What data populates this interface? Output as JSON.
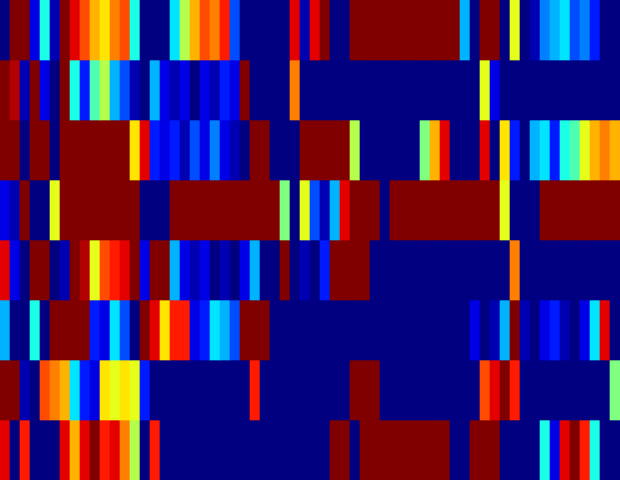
{
  "chart_data": {
    "type": "heatmap",
    "color": "jet",
    "tick_labels": false,
    "grid": false,
    "cells": [
      [
        0,
        1,
        1,
        0.1,
        0.4,
        0.05,
        1,
        0.9,
        0.8,
        0.7,
        0.65,
        0.75,
        0.8,
        0.4,
        0,
        0,
        0,
        0.35,
        0.55,
        0.7,
        0.8,
        0.75,
        0.85,
        0.2,
        0,
        0,
        0,
        0,
        0,
        0.9,
        0.05,
        0.9,
        1,
        0,
        0,
        1,
        1,
        1,
        1,
        1,
        1,
        1,
        1,
        1,
        1,
        1,
        0.3,
        0,
        1,
        1,
        0,
        0.6,
        0,
        0.05,
        0.25,
        0.3,
        0.35,
        0.2,
        0.25,
        0.15,
        0,
        0
      ],
      [
        1,
        0.95,
        0.05,
        1,
        0.1,
        0,
        1,
        0.4,
        0.15,
        0.45,
        0.55,
        0.3,
        0.2,
        0.05,
        0,
        0.3,
        0.1,
        0.05,
        0.1,
        0,
        0.1,
        0.05,
        0.15,
        0.1,
        1,
        0,
        0,
        0,
        0,
        0.75,
        0,
        0,
        0,
        0,
        0,
        0,
        0,
        0,
        0,
        0,
        0,
        0,
        0,
        0,
        0,
        0,
        0,
        0,
        0.6,
        0.1,
        0,
        0,
        0,
        0,
        0,
        0,
        0,
        0,
        0,
        0,
        0,
        0
      ],
      [
        1,
        1,
        0,
        1,
        1,
        0,
        1,
        1,
        1,
        1,
        1,
        1,
        1,
        0.65,
        0.9,
        0.15,
        0.1,
        0.15,
        0.05,
        0.2,
        0.1,
        0.25,
        0.1,
        0.05,
        0,
        1,
        1,
        0,
        0,
        0,
        1,
        1,
        1,
        1,
        1,
        0.55,
        0,
        0,
        0,
        0,
        0,
        0,
        0.5,
        0.7,
        0.9,
        0,
        0,
        0,
        0.9,
        0,
        0.65,
        0.15,
        0,
        0.3,
        0.35,
        0.15,
        0.4,
        0.45,
        0.6,
        0.7,
        0.75,
        0.7
      ],
      [
        0.1,
        0.05,
        1,
        0,
        0,
        0.6,
        1,
        1,
        1,
        1,
        1,
        1,
        1,
        1,
        0,
        0,
        0,
        1,
        1,
        1,
        1,
        1,
        1,
        1,
        1,
        1,
        1,
        1,
        0.5,
        0,
        0.6,
        0.2,
        0.05,
        0.3,
        0.9,
        1,
        1,
        1,
        0,
        1,
        1,
        1,
        1,
        1,
        1,
        1,
        1,
        1,
        1,
        1,
        0.6,
        0,
        0,
        0,
        1,
        1,
        1,
        1,
        1,
        1,
        1,
        1
      ],
      [
        0.9,
        0.1,
        0,
        1,
        1,
        0,
        0.05,
        1,
        0.95,
        0.6,
        0.8,
        0.85,
        0.9,
        1,
        0.1,
        1,
        1,
        0.3,
        0.1,
        0.05,
        0.1,
        0,
        0.05,
        0,
        0.1,
        0.3,
        0,
        0,
        1,
        0,
        0.05,
        0,
        0.15,
        1,
        1,
        1,
        1,
        0,
        0,
        0,
        0,
        0,
        0,
        0,
        0,
        0,
        0,
        0,
        0,
        0,
        0,
        0.75,
        0,
        0,
        0,
        0,
        0,
        0,
        0,
        0,
        0,
        0
      ],
      [
        0.3,
        0,
        0,
        0.4,
        0,
        1,
        1,
        1,
        1,
        0.15,
        0.1,
        0.35,
        0.2,
        0,
        1,
        0.9,
        0.65,
        0.85,
        0.85,
        0.1,
        0.15,
        0.35,
        0.3,
        0.2,
        1,
        1,
        1,
        0,
        0,
        0,
        0,
        0,
        0,
        0,
        0,
        0,
        0,
        0,
        0,
        0,
        0,
        0,
        0,
        0,
        0,
        0,
        0,
        0.1,
        0,
        0.05,
        0.3,
        1,
        0.05,
        0,
        0.1,
        0.15,
        0.05,
        0,
        0.1,
        0.35,
        0.9,
        0
      ],
      [
        1,
        1,
        0.05,
        0,
        0.8,
        0.75,
        0.7,
        0.35,
        0.15,
        0.1,
        0.65,
        0.6,
        0.65,
        0.6,
        0.15,
        0,
        0,
        0,
        0,
        0,
        0,
        0,
        0,
        0,
        0,
        0.85,
        0,
        0,
        0,
        0,
        0,
        0,
        0,
        0,
        0,
        1,
        1,
        1,
        0,
        0,
        0,
        0,
        0,
        0,
        0,
        0,
        0,
        0,
        0.8,
        0.9,
        1,
        0.85,
        0,
        0,
        0,
        0,
        0,
        0,
        0,
        0,
        0,
        0.5
      ],
      [
        0.9,
        0,
        0.85,
        0,
        0,
        0,
        0.9,
        0.7,
        0.9,
        1,
        0.85,
        0.9,
        0.75,
        0.55,
        0,
        0.85,
        0,
        0,
        0,
        0,
        0,
        0,
        0,
        0,
        0,
        0,
        0,
        0,
        0,
        0,
        0,
        0,
        0,
        1,
        1,
        0,
        1,
        1,
        1,
        1,
        1,
        1,
        1,
        1,
        1,
        0,
        0,
        1,
        1,
        1,
        0,
        0,
        0,
        0,
        0.4,
        0.1,
        0.9,
        1,
        0.85,
        0.4,
        0,
        0
      ]
    ]
  }
}
